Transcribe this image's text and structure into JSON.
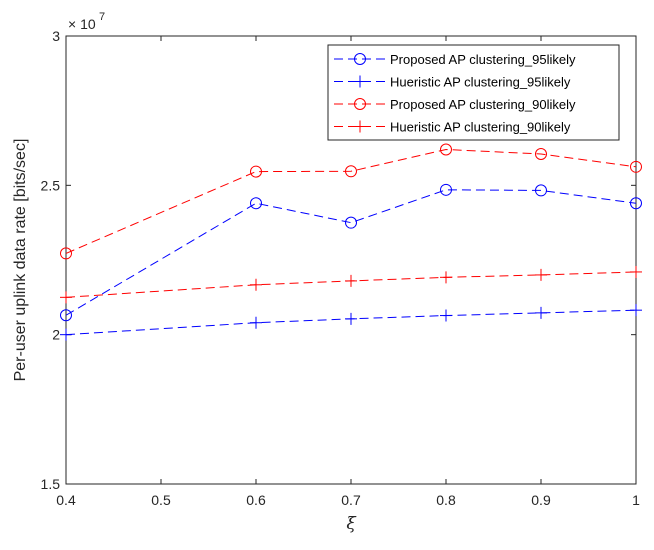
{
  "chart_data": {
    "type": "line",
    "xlabel": "ξ",
    "ylabel": "Per-user uplink data rate [bits/sec]",
    "y_exponent_base": "× 10",
    "y_exponent_power": "7",
    "x": [
      0.4,
      0.6,
      0.7,
      0.8,
      0.9,
      1
    ],
    "xlim": [
      0.4,
      1
    ],
    "ylim": [
      1.5,
      3
    ],
    "x_ticks": [
      0.4,
      0.5,
      0.6,
      0.7,
      0.8,
      0.9,
      1
    ],
    "x_tick_labels": [
      "0.4",
      "0.5",
      "0.6",
      "0.7",
      "0.8",
      "0.9",
      "1"
    ],
    "y_ticks": [
      1.5,
      2,
      2.5,
      3
    ],
    "y_tick_labels": [
      "1.5",
      "2",
      "2.5",
      "3"
    ],
    "grid": false,
    "legend_position": "top-right",
    "series": [
      {
        "name": "Proposed AP clustering_95likely",
        "values": [
          2.065,
          2.44,
          2.375,
          2.485,
          2.483,
          2.44
        ],
        "color": "#0000ff",
        "marker": "circle"
      },
      {
        "name": "Hueristic AP clustering_95likely",
        "values": [
          2.0,
          2.04,
          2.053,
          2.064,
          2.073,
          2.082
        ],
        "color": "#0000ff",
        "marker": "plus"
      },
      {
        "name": "Proposed AP clustering_90likely",
        "values": [
          2.272,
          2.546,
          2.547,
          2.62,
          2.605,
          2.562
        ],
        "color": "#ff0000",
        "marker": "circle"
      },
      {
        "name": "Hueristic AP clustering_90likely",
        "values": [
          2.125,
          2.167,
          2.18,
          2.192,
          2.2,
          2.21
        ],
        "color": "#ff0000",
        "marker": "plus"
      }
    ]
  }
}
